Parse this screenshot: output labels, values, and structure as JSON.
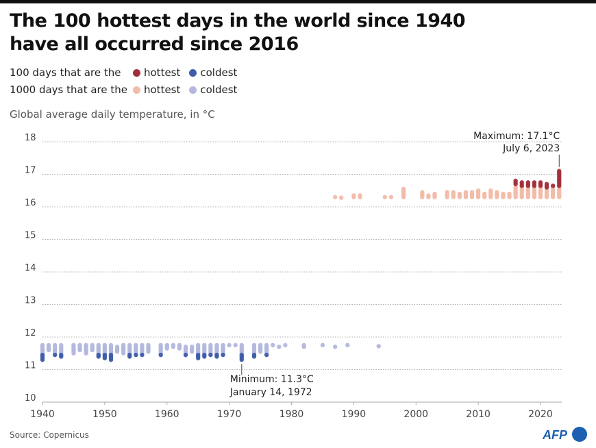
{
  "title_lines": [
    "The 100 hottest days in the world since 1940",
    "have all occurred since 2016"
  ],
  "legend": {
    "row1_label": "100 days that are the",
    "row2_label": "1000 days that are the",
    "hottest": "hottest",
    "coldest": "coldest"
  },
  "colors": {
    "hot100": "#a2303c",
    "hot1000": "#f2bca8",
    "cold100": "#3e5ca8",
    "cold1000": "#b3b8dc"
  },
  "source": "Source: Copernicus",
  "logo": "AFP",
  "chart_data": {
    "type": "scatter",
    "ylabel": "Global average daily temperature, in °C",
    "ylim": [
      10,
      18
    ],
    "xlim": [
      1940,
      2023
    ],
    "yticks": [
      10,
      11,
      12,
      13,
      14,
      15,
      16,
      17,
      18
    ],
    "xticks": [
      1940,
      1950,
      1960,
      1970,
      1980,
      1990,
      2000,
      2010,
      2020
    ],
    "grid": true,
    "annotations": [
      {
        "lines": [
          "Maximum: 17.1°C",
          "July 6, 2023"
        ],
        "x": 2023,
        "y": 17.1
      },
      {
        "lines": [
          "Minimum: 11.3°C",
          "January 14, 1972"
        ],
        "x": 1972,
        "y": 11.3
      }
    ],
    "cold_years": [
      {
        "year": 1940,
        "c1000": [
          11.5,
          11.75
        ],
        "c100": [
          11.3,
          11.45
        ]
      },
      {
        "year": 1941,
        "c1000": [
          11.6,
          11.75
        ]
      },
      {
        "year": 1942,
        "c1000": [
          11.5,
          11.75
        ],
        "c100": [
          11.45,
          11.45
        ]
      },
      {
        "year": 1943,
        "c1000": [
          11.5,
          11.75
        ],
        "c100": [
          11.4,
          11.45
        ]
      },
      {
        "year": 1945,
        "c1000": [
          11.5,
          11.75
        ]
      },
      {
        "year": 1946,
        "c1000": [
          11.6,
          11.75
        ]
      },
      {
        "year": 1947,
        "c1000": [
          11.5,
          11.75
        ]
      },
      {
        "year": 1948,
        "c1000": [
          11.6,
          11.75
        ]
      },
      {
        "year": 1949,
        "c1000": [
          11.5,
          11.75
        ],
        "c100": [
          11.4,
          11.45
        ]
      },
      {
        "year": 1950,
        "c1000": [
          11.5,
          11.75
        ],
        "c100": [
          11.35,
          11.45
        ]
      },
      {
        "year": 1951,
        "c1000": [
          11.5,
          11.75
        ],
        "c100": [
          11.3,
          11.45
        ]
      },
      {
        "year": 1952,
        "c1000": [
          11.55,
          11.7
        ]
      },
      {
        "year": 1953,
        "c1000": [
          11.5,
          11.75
        ]
      },
      {
        "year": 1954,
        "c1000": [
          11.5,
          11.75
        ],
        "c100": [
          11.4,
          11.45
        ]
      },
      {
        "year": 1955,
        "c1000": [
          11.5,
          11.75
        ],
        "c100": [
          11.45,
          11.45
        ]
      },
      {
        "year": 1956,
        "c1000": [
          11.5,
          11.75
        ],
        "c100": [
          11.45,
          11.45
        ]
      },
      {
        "year": 1957,
        "c1000": [
          11.55,
          11.75
        ]
      },
      {
        "year": 1959,
        "c1000": [
          11.5,
          11.75
        ],
        "c100": [
          11.45,
          11.45
        ]
      },
      {
        "year": 1960,
        "c1000": [
          11.65,
          11.75
        ]
      },
      {
        "year": 1961,
        "c1000": [
          11.7,
          11.75
        ]
      },
      {
        "year": 1962,
        "c1000": [
          11.65,
          11.75
        ]
      },
      {
        "year": 1963,
        "c1000": [
          11.5,
          11.7
        ],
        "c100": [
          11.45,
          11.45
        ]
      },
      {
        "year": 1964,
        "c1000": [
          11.55,
          11.7
        ]
      },
      {
        "year": 1965,
        "c1000": [
          11.5,
          11.75
        ],
        "c100": [
          11.35,
          11.45
        ]
      },
      {
        "year": 1966,
        "c1000": [
          11.5,
          11.75
        ],
        "c100": [
          11.4,
          11.45
        ]
      },
      {
        "year": 1967,
        "c1000": [
          11.5,
          11.75
        ],
        "c100": [
          11.45,
          11.45
        ]
      },
      {
        "year": 1968,
        "c1000": [
          11.5,
          11.75
        ],
        "c100": [
          11.4,
          11.45
        ]
      },
      {
        "year": 1969,
        "c1000": [
          11.5,
          11.75
        ],
        "c100": [
          11.45,
          11.45
        ]
      },
      {
        "year": 1970,
        "c1000": [
          11.75,
          11.75
        ]
      },
      {
        "year": 1971,
        "c1000": [
          11.75,
          11.75
        ]
      },
      {
        "year": 1972,
        "c1000": [
          11.5,
          11.75
        ],
        "c100": [
          11.3,
          11.45
        ]
      },
      {
        "year": 1974,
        "c1000": [
          11.5,
          11.75
        ],
        "c100": [
          11.4,
          11.45
        ]
      },
      {
        "year": 1975,
        "c1000": [
          11.55,
          11.75
        ]
      },
      {
        "year": 1976,
        "c1000": [
          11.5,
          11.75
        ],
        "c100": [
          11.45,
          11.45
        ]
      },
      {
        "year": 1977,
        "c1000": [
          11.75,
          11.75
        ]
      },
      {
        "year": 1978,
        "c1000": [
          11.7,
          11.7
        ]
      },
      {
        "year": 1979,
        "c1000": [
          11.75,
          11.75
        ]
      },
      {
        "year": 1982,
        "c1000": [
          11.7,
          11.75
        ]
      },
      {
        "year": 1985,
        "c1000": [
          11.75,
          11.75
        ]
      },
      {
        "year": 1987,
        "c1000": [
          11.7,
          11.7
        ]
      },
      {
        "year": 1989,
        "c1000": [
          11.75,
          11.75
        ]
      },
      {
        "year": 1994,
        "c1000": [
          11.72,
          11.72
        ]
      }
    ],
    "hot_years": [
      {
        "year": 1987,
        "h1000": [
          16.3,
          16.3
        ]
      },
      {
        "year": 1988,
        "h1000": [
          16.28,
          16.28
        ]
      },
      {
        "year": 1990,
        "h1000": [
          16.3,
          16.35
        ]
      },
      {
        "year": 1991,
        "h1000": [
          16.3,
          16.35
        ]
      },
      {
        "year": 1995,
        "h1000": [
          16.3,
          16.3
        ]
      },
      {
        "year": 1996,
        "h1000": [
          16.3,
          16.3
        ]
      },
      {
        "year": 1998,
        "h1000": [
          16.3,
          16.55
        ]
      },
      {
        "year": 2001,
        "h1000": [
          16.3,
          16.45
        ]
      },
      {
        "year": 2002,
        "h1000": [
          16.3,
          16.35
        ]
      },
      {
        "year": 2003,
        "h1000": [
          16.3,
          16.4
        ]
      },
      {
        "year": 2005,
        "h1000": [
          16.3,
          16.45
        ]
      },
      {
        "year": 2006,
        "h1000": [
          16.3,
          16.45
        ]
      },
      {
        "year": 2007,
        "h1000": [
          16.3,
          16.4
        ]
      },
      {
        "year": 2008,
        "h1000": [
          16.3,
          16.45
        ]
      },
      {
        "year": 2009,
        "h1000": [
          16.3,
          16.45
        ]
      },
      {
        "year": 2010,
        "h1000": [
          16.3,
          16.5
        ]
      },
      {
        "year": 2011,
        "h1000": [
          16.3,
          16.4
        ]
      },
      {
        "year": 2012,
        "h1000": [
          16.3,
          16.5
        ]
      },
      {
        "year": 2013,
        "h1000": [
          16.3,
          16.45
        ]
      },
      {
        "year": 2014,
        "h1000": [
          16.3,
          16.4
        ]
      },
      {
        "year": 2015,
        "h1000": [
          16.3,
          16.4
        ]
      },
      {
        "year": 2016,
        "h1000": [
          16.3,
          16.6
        ],
        "h100": [
          16.7,
          16.8
        ]
      },
      {
        "year": 2017,
        "h1000": [
          16.3,
          16.6
        ],
        "h100": [
          16.65,
          16.75
        ]
      },
      {
        "year": 2018,
        "h1000": [
          16.3,
          16.6
        ],
        "h100": [
          16.65,
          16.75
        ]
      },
      {
        "year": 2019,
        "h1000": [
          16.3,
          16.6
        ],
        "h100": [
          16.65,
          16.75
        ]
      },
      {
        "year": 2020,
        "h1000": [
          16.3,
          16.6
        ],
        "h100": [
          16.65,
          16.75
        ]
      },
      {
        "year": 2021,
        "h1000": [
          16.3,
          16.55
        ],
        "h100": [
          16.6,
          16.7
        ]
      },
      {
        "year": 2022,
        "h1000": [
          16.3,
          16.6
        ],
        "h100": [
          16.65,
          16.65
        ]
      },
      {
        "year": 2023,
        "h1000": [
          16.3,
          16.6
        ],
        "h100": [
          16.65,
          17.1
        ]
      }
    ]
  }
}
